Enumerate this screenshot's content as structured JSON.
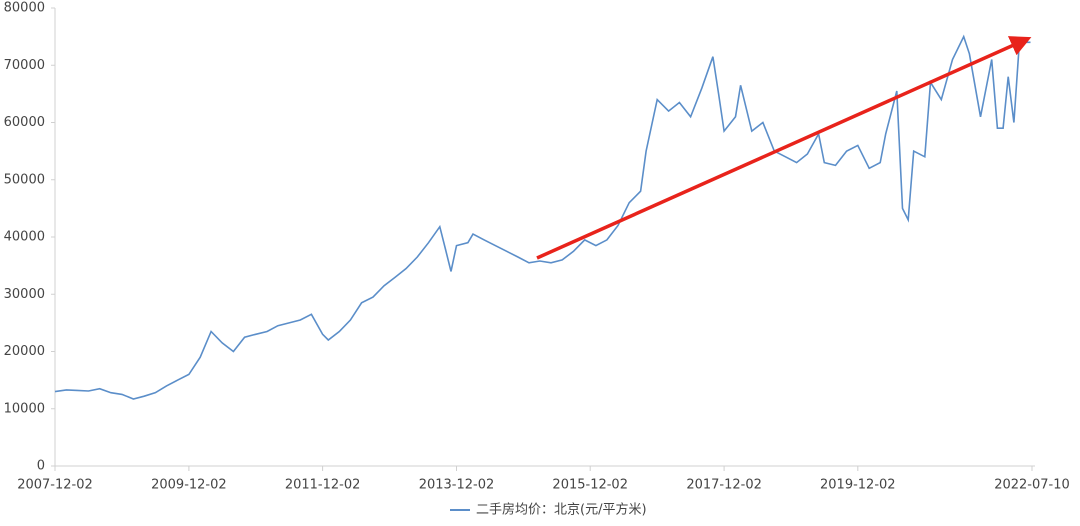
{
  "chart_data": {
    "type": "line",
    "x": [
      "2007-12-02",
      "2008-02-02",
      "2008-04-02",
      "2008-06-02",
      "2008-08-02",
      "2008-10-02",
      "2008-12-02",
      "2009-02-02",
      "2009-04-02",
      "2009-06-02",
      "2009-08-02",
      "2009-10-02",
      "2009-12-02",
      "2010-02-02",
      "2010-04-02",
      "2010-06-02",
      "2010-08-02",
      "2010-10-02",
      "2010-12-02",
      "2011-02-02",
      "2011-04-02",
      "2011-06-02",
      "2011-08-02",
      "2011-10-02",
      "2011-12-02",
      "2012-01-02",
      "2012-03-02",
      "2012-05-02",
      "2012-07-02",
      "2012-09-02",
      "2012-11-02",
      "2013-01-02",
      "2013-03-02",
      "2013-05-02",
      "2013-07-02",
      "2013-09-02",
      "2013-10-02",
      "2013-11-02",
      "2013-12-02",
      "2014-02-02",
      "2014-03-02",
      "2014-05-02",
      "2014-07-02",
      "2014-09-02",
      "2014-11-02",
      "2015-01-02",
      "2015-03-02",
      "2015-05-02",
      "2015-07-02",
      "2015-09-02",
      "2015-11-02",
      "2016-01-02",
      "2016-03-02",
      "2016-05-02",
      "2016-07-02",
      "2016-09-02",
      "2016-10-02",
      "2016-12-02",
      "2017-02-02",
      "2017-04-02",
      "2017-06-02",
      "2017-08-02",
      "2017-10-02",
      "2017-11-02",
      "2017-12-02",
      "2018-02-02",
      "2018-03-02",
      "2018-05-02",
      "2018-07-02",
      "2018-09-02",
      "2018-11-02",
      "2019-01-02",
      "2019-03-02",
      "2019-05-02",
      "2019-06-02",
      "2019-08-02",
      "2019-10-02",
      "2019-12-02",
      "2020-02-02",
      "2020-04-02",
      "2020-05-02",
      "2020-07-02",
      "2020-08-02",
      "2020-09-02",
      "2020-10-02",
      "2020-12-02",
      "2021-01-02",
      "2021-03-02",
      "2021-05-02",
      "2021-07-02",
      "2021-08-02",
      "2021-10-02",
      "2021-12-02",
      "2022-01-02",
      "2022-02-02",
      "2022-03-02",
      "2022-04-02",
      "2022-05-02",
      "2022-07-02"
    ],
    "series": [
      {
        "name": "二手房均价：北京(元/平方米)",
        "color": "#5b8ec9",
        "values": [
          13000,
          13300,
          13200,
          13100,
          13500,
          12800,
          12500,
          11700,
          12200,
          12800,
          14000,
          15000,
          16000,
          19000,
          23500,
          21500,
          20000,
          22500,
          23000,
          23500,
          24500,
          25000,
          25500,
          26500,
          23000,
          22000,
          23500,
          25500,
          28500,
          29500,
          31500,
          33000,
          34500,
          36500,
          39000,
          41800,
          38000,
          34000,
          38500,
          39000,
          40500,
          39500,
          38500,
          37500,
          36500,
          35500,
          35800,
          35500,
          36000,
          37500,
          39500,
          38500,
          39500,
          42000,
          46000,
          48000,
          55000,
          64000,
          62000,
          63500,
          61000,
          66000,
          71500,
          65000,
          58500,
          61000,
          66500,
          58500,
          60000,
          55000,
          54000,
          53000,
          54500,
          58000,
          53000,
          52500,
          55000,
          56000,
          52000,
          53000,
          58000,
          65500,
          45000,
          43000,
          55000,
          54000,
          67000,
          64000,
          71000,
          75000,
          72000,
          61000,
          71000,
          59000,
          59000,
          68000,
          60000,
          74000,
          74000
        ]
      }
    ],
    "xlim": [
      "2007-12-02",
      "2022-07-10"
    ],
    "xticks": [
      "2007-12-02",
      "2009-12-02",
      "2011-12-02",
      "2013-12-02",
      "2015-12-02",
      "2017-12-02",
      "2019-12-02",
      "2022-07-10"
    ],
    "ylim": [
      0,
      80000
    ],
    "yticks": [
      0,
      10000,
      20000,
      30000,
      40000,
      50000,
      60000,
      70000,
      80000
    ],
    "grid": false
  }
}
